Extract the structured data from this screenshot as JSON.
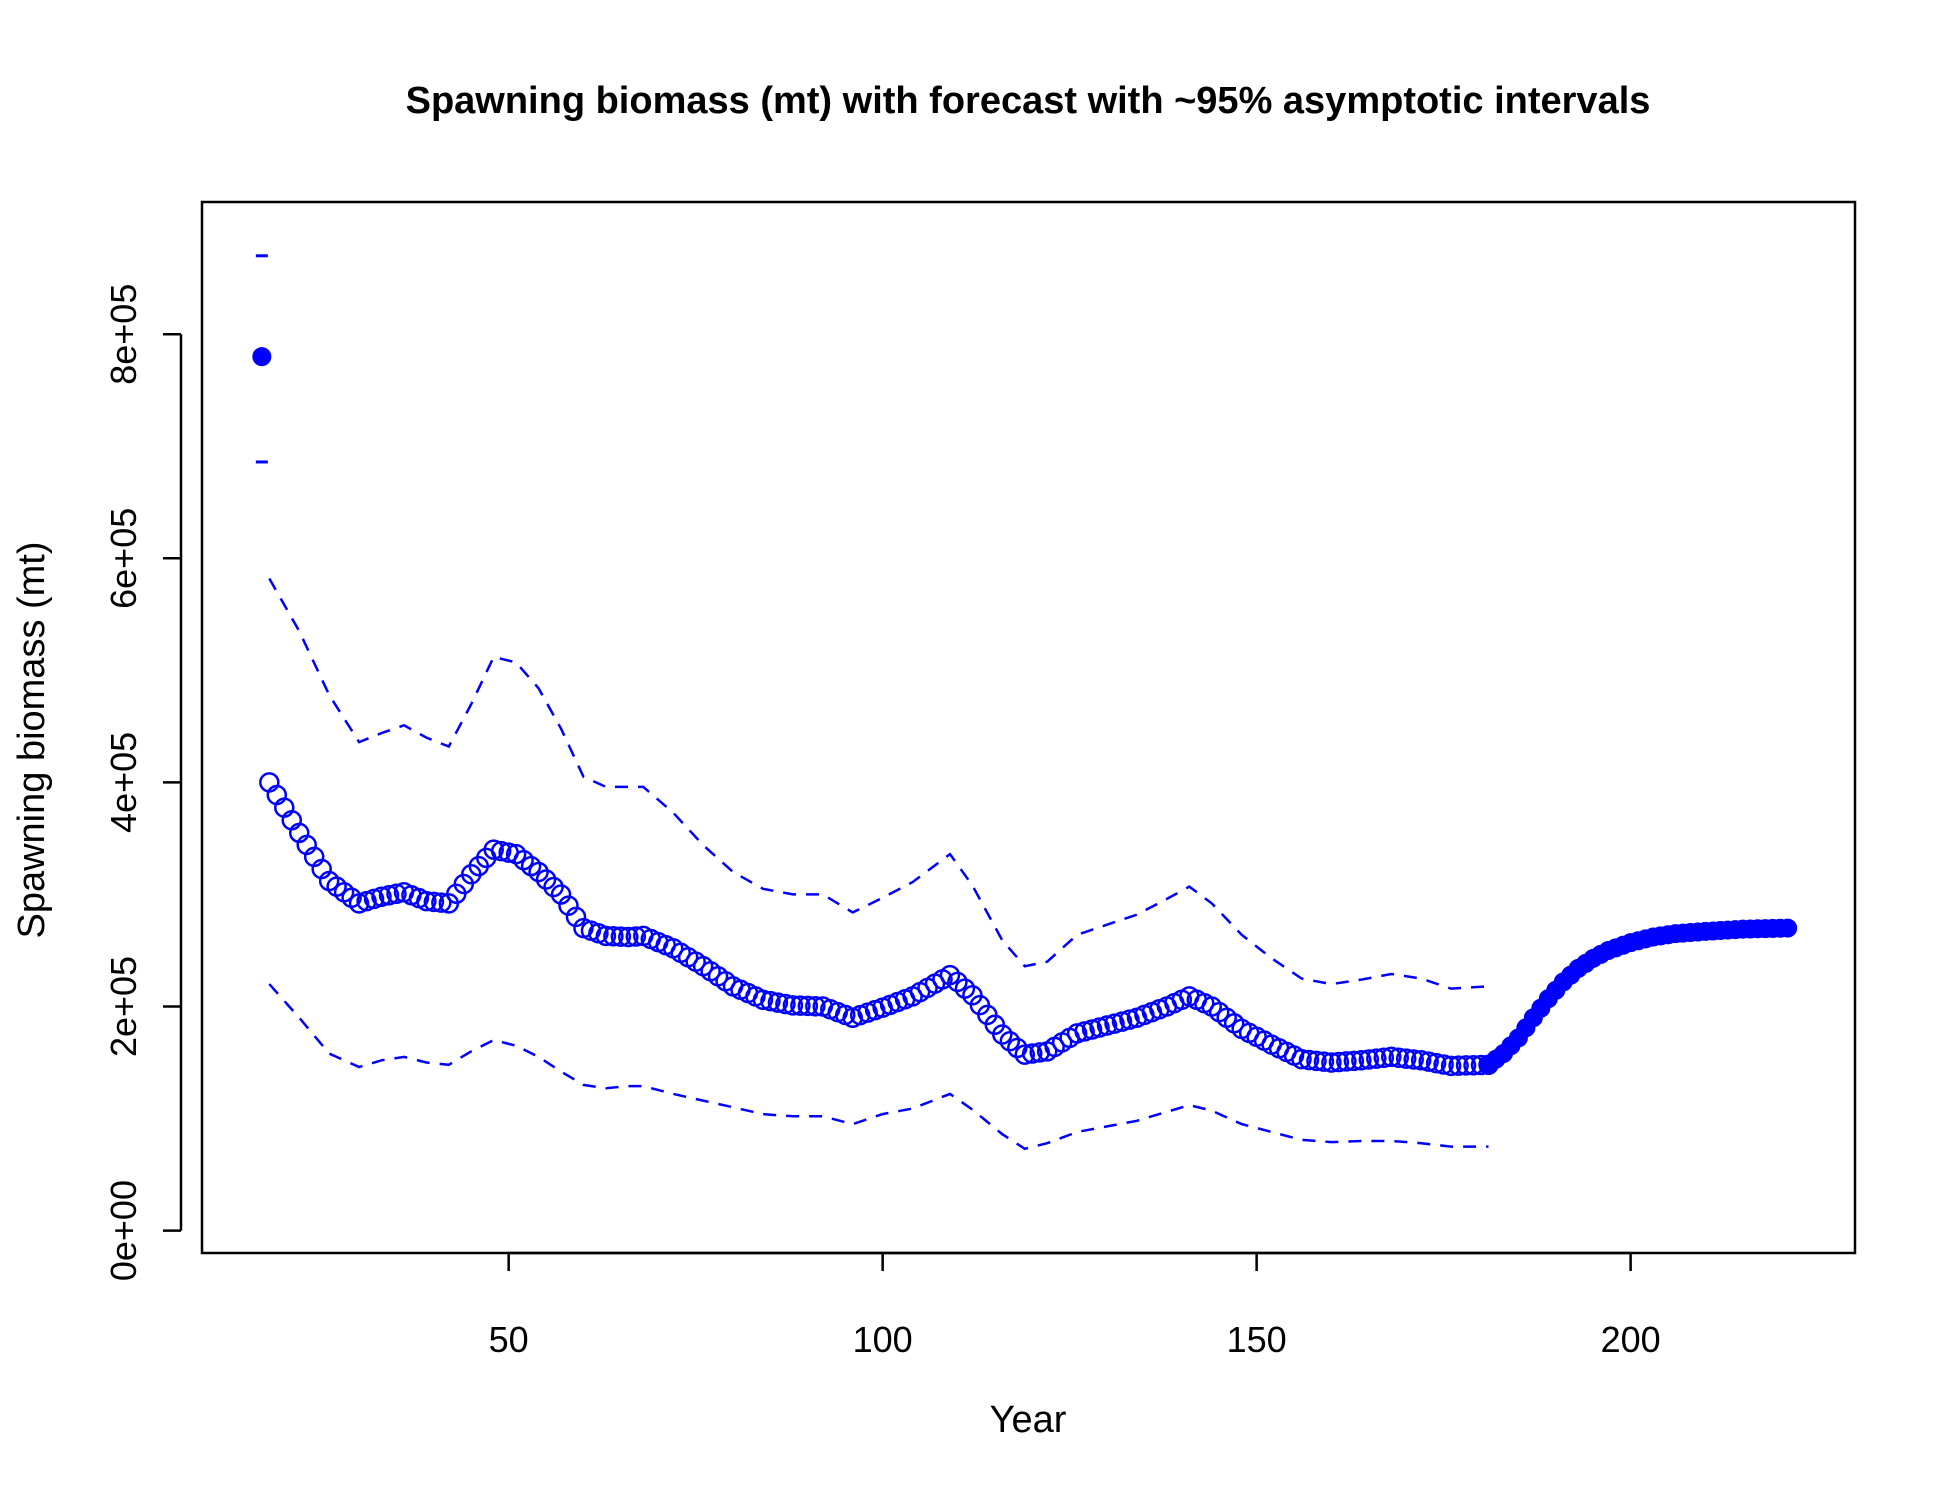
{
  "colors": {
    "series": "#0000ff",
    "axis": "#000000",
    "background": "#ffffff"
  },
  "chart_data": {
    "type": "line",
    "title": "Spawning biomass (mt) with forecast with ~95% asymptotic intervals",
    "xlabel": "Year",
    "ylabel": "Spawning biomass (mt)",
    "xlim": [
      9,
      230
    ],
    "ylim": [
      -20000,
      918000
    ],
    "x_ticks": [
      50,
      100,
      150,
      200
    ],
    "x_tick_labels": [
      "50",
      "100",
      "150",
      "200"
    ],
    "y_ticks": [
      0,
      200000,
      400000,
      600000,
      800000
    ],
    "y_tick_labels": [
      "0e+00",
      "2e+05",
      "4e+05",
      "6e+05",
      "8e+05"
    ],
    "grid": false,
    "legend": "none",
    "initial_point": {
      "x": 17,
      "y": 780000,
      "upper": 870000,
      "lower": 686000
    },
    "estimate_keypoints": [
      [
        18,
        400000
      ],
      [
        22,
        355000
      ],
      [
        26,
        312000
      ],
      [
        30,
        292000
      ],
      [
        33,
        298000
      ],
      [
        36,
        302000
      ],
      [
        39,
        294000
      ],
      [
        42,
        292000
      ],
      [
        45,
        318000
      ],
      [
        48,
        340000
      ],
      [
        51,
        336000
      ],
      [
        54,
        320000
      ],
      [
        57,
        300000
      ],
      [
        60,
        270000
      ],
      [
        63,
        263000
      ],
      [
        66,
        262000
      ],
      [
        68,
        263000
      ],
      [
        72,
        252000
      ],
      [
        76,
        236000
      ],
      [
        80,
        218000
      ],
      [
        84,
        206000
      ],
      [
        88,
        201000
      ],
      [
        92,
        200000
      ],
      [
        96,
        190000
      ],
      [
        100,
        199000
      ],
      [
        104,
        209000
      ],
      [
        109,
        228000
      ],
      [
        112,
        210000
      ],
      [
        116,
        175000
      ],
      [
        119,
        157000
      ],
      [
        122,
        160000
      ],
      [
        126,
        176000
      ],
      [
        130,
        183000
      ],
      [
        134,
        190000
      ],
      [
        138,
        200000
      ],
      [
        141,
        209000
      ],
      [
        144,
        200000
      ],
      [
        148,
        180000
      ],
      [
        152,
        166000
      ],
      [
        156,
        153000
      ],
      [
        160,
        150000
      ],
      [
        164,
        152000
      ],
      [
        168,
        155000
      ],
      [
        172,
        152000
      ],
      [
        176,
        147000
      ],
      [
        181,
        148000
      ]
    ],
    "upper_ci": [
      [
        18,
        582000
      ],
      [
        22,
        535000
      ],
      [
        26,
        478000
      ],
      [
        30,
        436000
      ],
      [
        33,
        444000
      ],
      [
        36,
        451000
      ],
      [
        39,
        440000
      ],
      [
        42,
        432000
      ],
      [
        45,
        470000
      ],
      [
        48,
        512000
      ],
      [
        51,
        507000
      ],
      [
        54,
        484000
      ],
      [
        57,
        448000
      ],
      [
        60,
        405000
      ],
      [
        63,
        396000
      ],
      [
        66,
        396000
      ],
      [
        68,
        396000
      ],
      [
        72,
        373000
      ],
      [
        76,
        344000
      ],
      [
        80,
        320000
      ],
      [
        84,
        305000
      ],
      [
        88,
        300000
      ],
      [
        92,
        300000
      ],
      [
        96,
        284000
      ],
      [
        100,
        297000
      ],
      [
        104,
        311000
      ],
      [
        109,
        336000
      ],
      [
        112,
        308000
      ],
      [
        116,
        259000
      ],
      [
        119,
        236000
      ],
      [
        122,
        240000
      ],
      [
        126,
        264000
      ],
      [
        130,
        273000
      ],
      [
        134,
        282000
      ],
      [
        138,
        296000
      ],
      [
        141,
        307000
      ],
      [
        144,
        292000
      ],
      [
        148,
        264000
      ],
      [
        152,
        243000
      ],
      [
        156,
        225000
      ],
      [
        160,
        220000
      ],
      [
        164,
        224000
      ],
      [
        168,
        229000
      ],
      [
        172,
        225000
      ],
      [
        176,
        216000
      ],
      [
        181,
        218000
      ]
    ],
    "lower_ci": [
      [
        18,
        220000
      ],
      [
        22,
        190000
      ],
      [
        26,
        158000
      ],
      [
        30,
        146000
      ],
      [
        33,
        152000
      ],
      [
        36,
        155000
      ],
      [
        39,
        150000
      ],
      [
        42,
        148000
      ],
      [
        45,
        160000
      ],
      [
        48,
        170000
      ],
      [
        51,
        165000
      ],
      [
        54,
        155000
      ],
      [
        57,
        142000
      ],
      [
        60,
        130000
      ],
      [
        63,
        127000
      ],
      [
        66,
        129000
      ],
      [
        68,
        129000
      ],
      [
        72,
        122000
      ],
      [
        76,
        116000
      ],
      [
        80,
        110000
      ],
      [
        84,
        104000
      ],
      [
        88,
        102000
      ],
      [
        92,
        102000
      ],
      [
        96,
        95000
      ],
      [
        100,
        104000
      ],
      [
        104,
        109000
      ],
      [
        109,
        122000
      ],
      [
        112,
        108000
      ],
      [
        116,
        86000
      ],
      [
        119,
        73000
      ],
      [
        122,
        78000
      ],
      [
        126,
        88000
      ],
      [
        130,
        93000
      ],
      [
        134,
        98000
      ],
      [
        138,
        106000
      ],
      [
        141,
        112000
      ],
      [
        144,
        107000
      ],
      [
        148,
        95000
      ],
      [
        152,
        88000
      ],
      [
        156,
        81000
      ],
      [
        160,
        79000
      ],
      [
        164,
        80000
      ],
      [
        168,
        80000
      ],
      [
        172,
        78000
      ],
      [
        176,
        75000
      ],
      [
        181,
        75000
      ]
    ],
    "forecast_keypoints": [
      [
        181,
        148000
      ],
      [
        183,
        158000
      ],
      [
        185,
        172000
      ],
      [
        187,
        190000
      ],
      [
        189,
        207000
      ],
      [
        191,
        222000
      ],
      [
        193,
        234000
      ],
      [
        195,
        243000
      ],
      [
        197,
        250000
      ],
      [
        200,
        257000
      ],
      [
        203,
        262000
      ],
      [
        206,
        265000
      ],
      [
        210,
        267000
      ],
      [
        215,
        269000
      ],
      [
        221,
        270000
      ]
    ]
  }
}
